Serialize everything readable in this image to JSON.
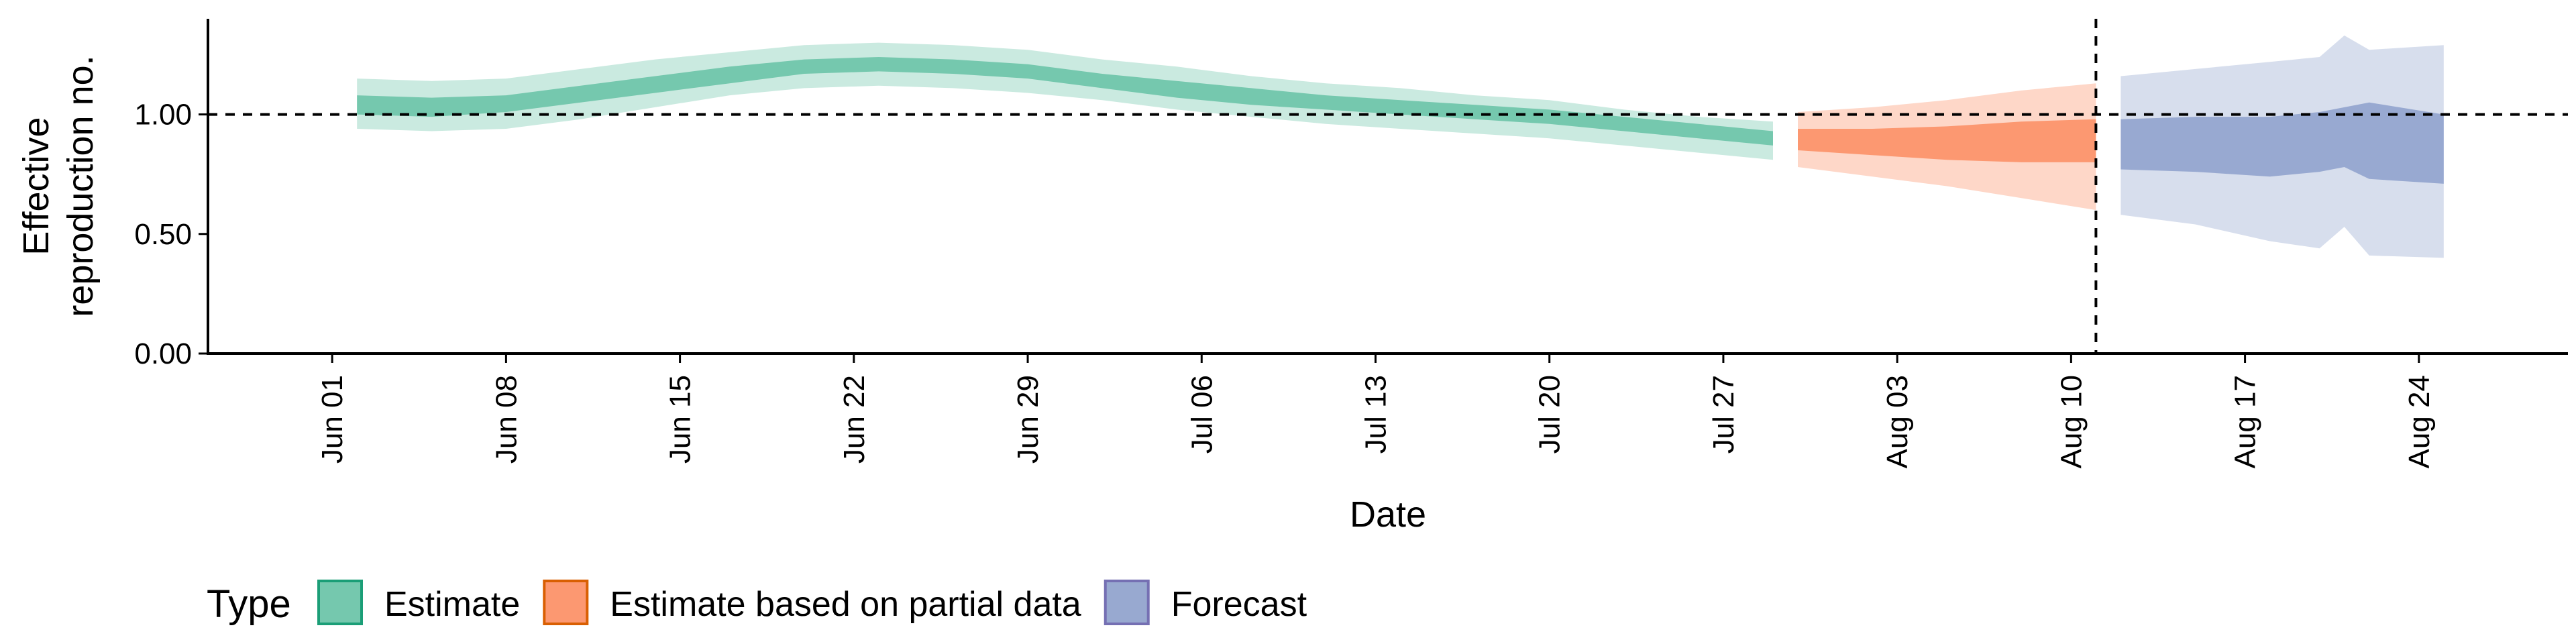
{
  "chart_data": {
    "type": "area",
    "xlabel": "Date",
    "ylabel_lines": [
      "Effective",
      "reproduction no."
    ],
    "ylim": [
      0,
      1.4
    ],
    "yticks": [
      0,
      0.5,
      1.0
    ],
    "ytick_labels": [
      "0.00",
      "0.50",
      "1.00"
    ],
    "xlim": [
      "2020-05-27",
      "2020-08-30"
    ],
    "xticks": [
      "2020-06-01",
      "2020-06-08",
      "2020-06-15",
      "2020-06-22",
      "2020-06-29",
      "2020-07-06",
      "2020-07-13",
      "2020-07-20",
      "2020-07-27",
      "2020-08-03",
      "2020-08-10",
      "2020-08-17",
      "2020-08-24"
    ],
    "xtick_labels": [
      "Jun 01",
      "Jun 08",
      "Jun 15",
      "Jun 22",
      "Jun 29",
      "Jul 06",
      "Jul 13",
      "Jul 20",
      "Jul 27",
      "Aug 03",
      "Aug 10",
      "Aug 17",
      "Aug 24"
    ],
    "reference_line_y": 1.0,
    "forecast_date": "2020-08-11",
    "series": [
      {
        "name": "Estimate",
        "color": "#1b9e77",
        "fill": "#66c2a5",
        "points": [
          {
            "date": "2020-06-02",
            "lo90": 0.94,
            "lo50": 1.0,
            "hi50": 1.08,
            "hi90": 1.15
          },
          {
            "date": "2020-06-05",
            "lo90": 0.93,
            "lo50": 0.99,
            "hi50": 1.07,
            "hi90": 1.14
          },
          {
            "date": "2020-06-08",
            "lo90": 0.94,
            "lo50": 1.01,
            "hi50": 1.08,
            "hi90": 1.15
          },
          {
            "date": "2020-06-11",
            "lo90": 0.98,
            "lo50": 1.05,
            "hi50": 1.12,
            "hi90": 1.19
          },
          {
            "date": "2020-06-14",
            "lo90": 1.03,
            "lo50": 1.09,
            "hi50": 1.16,
            "hi90": 1.23
          },
          {
            "date": "2020-06-17",
            "lo90": 1.08,
            "lo50": 1.13,
            "hi50": 1.2,
            "hi90": 1.26
          },
          {
            "date": "2020-06-20",
            "lo90": 1.11,
            "lo50": 1.17,
            "hi50": 1.23,
            "hi90": 1.29
          },
          {
            "date": "2020-06-23",
            "lo90": 1.12,
            "lo50": 1.18,
            "hi50": 1.24,
            "hi90": 1.3
          },
          {
            "date": "2020-06-26",
            "lo90": 1.11,
            "lo50": 1.17,
            "hi50": 1.23,
            "hi90": 1.29
          },
          {
            "date": "2020-06-29",
            "lo90": 1.09,
            "lo50": 1.15,
            "hi50": 1.21,
            "hi90": 1.27
          },
          {
            "date": "2020-07-02",
            "lo90": 1.06,
            "lo50": 1.11,
            "hi50": 1.17,
            "hi90": 1.23
          },
          {
            "date": "2020-07-05",
            "lo90": 1.02,
            "lo50": 1.07,
            "hi50": 1.14,
            "hi90": 1.2
          },
          {
            "date": "2020-07-08",
            "lo90": 0.99,
            "lo50": 1.04,
            "hi50": 1.11,
            "hi90": 1.16
          },
          {
            "date": "2020-07-11",
            "lo90": 0.96,
            "lo50": 1.02,
            "hi50": 1.08,
            "hi90": 1.13
          },
          {
            "date": "2020-07-14",
            "lo90": 0.94,
            "lo50": 1.0,
            "hi50": 1.06,
            "hi90": 1.11
          },
          {
            "date": "2020-07-17",
            "lo90": 0.92,
            "lo50": 0.98,
            "hi50": 1.04,
            "hi90": 1.08
          },
          {
            "date": "2020-07-20",
            "lo90": 0.9,
            "lo50": 0.96,
            "hi50": 1.02,
            "hi90": 1.06
          },
          {
            "date": "2020-07-23",
            "lo90": 0.87,
            "lo50": 0.93,
            "hi50": 0.99,
            "hi90": 1.02
          },
          {
            "date": "2020-07-26",
            "lo90": 0.84,
            "lo50": 0.9,
            "hi50": 0.96,
            "hi90": 0.99
          },
          {
            "date": "2020-07-29",
            "lo90": 0.81,
            "lo50": 0.87,
            "hi50": 0.93,
            "hi90": 0.97
          }
        ]
      },
      {
        "name": "Estimate based on partial data",
        "color": "#d95f02",
        "fill": "#fc8d62",
        "points": [
          {
            "date": "2020-07-30",
            "lo90": 0.78,
            "lo50": 0.85,
            "hi50": 0.94,
            "hi90": 1.01
          },
          {
            "date": "2020-08-02",
            "lo90": 0.74,
            "lo50": 0.83,
            "hi50": 0.94,
            "hi90": 1.03
          },
          {
            "date": "2020-08-05",
            "lo90": 0.7,
            "lo50": 0.81,
            "hi50": 0.95,
            "hi90": 1.06
          },
          {
            "date": "2020-08-08",
            "lo90": 0.65,
            "lo50": 0.8,
            "hi50": 0.97,
            "hi90": 1.1
          },
          {
            "date": "2020-08-11",
            "lo90": 0.6,
            "lo50": 0.8,
            "hi50": 0.98,
            "hi90": 1.13
          }
        ]
      },
      {
        "name": "Forecast",
        "color": "#7570b3",
        "fill": "#8da0cb",
        "points": [
          {
            "date": "2020-08-12",
            "lo90": 0.58,
            "lo50": 0.77,
            "hi50": 0.98,
            "hi90": 1.16
          },
          {
            "date": "2020-08-15",
            "lo90": 0.54,
            "lo50": 0.76,
            "hi50": 0.99,
            "hi90": 1.19
          },
          {
            "date": "2020-08-18",
            "lo90": 0.47,
            "lo50": 0.74,
            "hi50": 0.99,
            "hi90": 1.22
          },
          {
            "date": "2020-08-20",
            "lo90": 0.44,
            "lo50": 0.76,
            "hi50": 1.01,
            "hi90": 1.24
          },
          {
            "date": "2020-08-21",
            "lo90": 0.53,
            "lo50": 0.78,
            "hi50": 1.03,
            "hi90": 1.33
          },
          {
            "date": "2020-08-22",
            "lo90": 0.41,
            "lo50": 0.73,
            "hi50": 1.05,
            "hi90": 1.27
          },
          {
            "date": "2020-08-25",
            "lo90": 0.4,
            "lo50": 0.71,
            "hi50": 1.0,
            "hi90": 1.29
          }
        ]
      }
    ],
    "legend": {
      "title": "Type",
      "position": "bottom-left",
      "entries": [
        "Estimate",
        "Estimate based on partial data",
        "Forecast"
      ]
    }
  }
}
